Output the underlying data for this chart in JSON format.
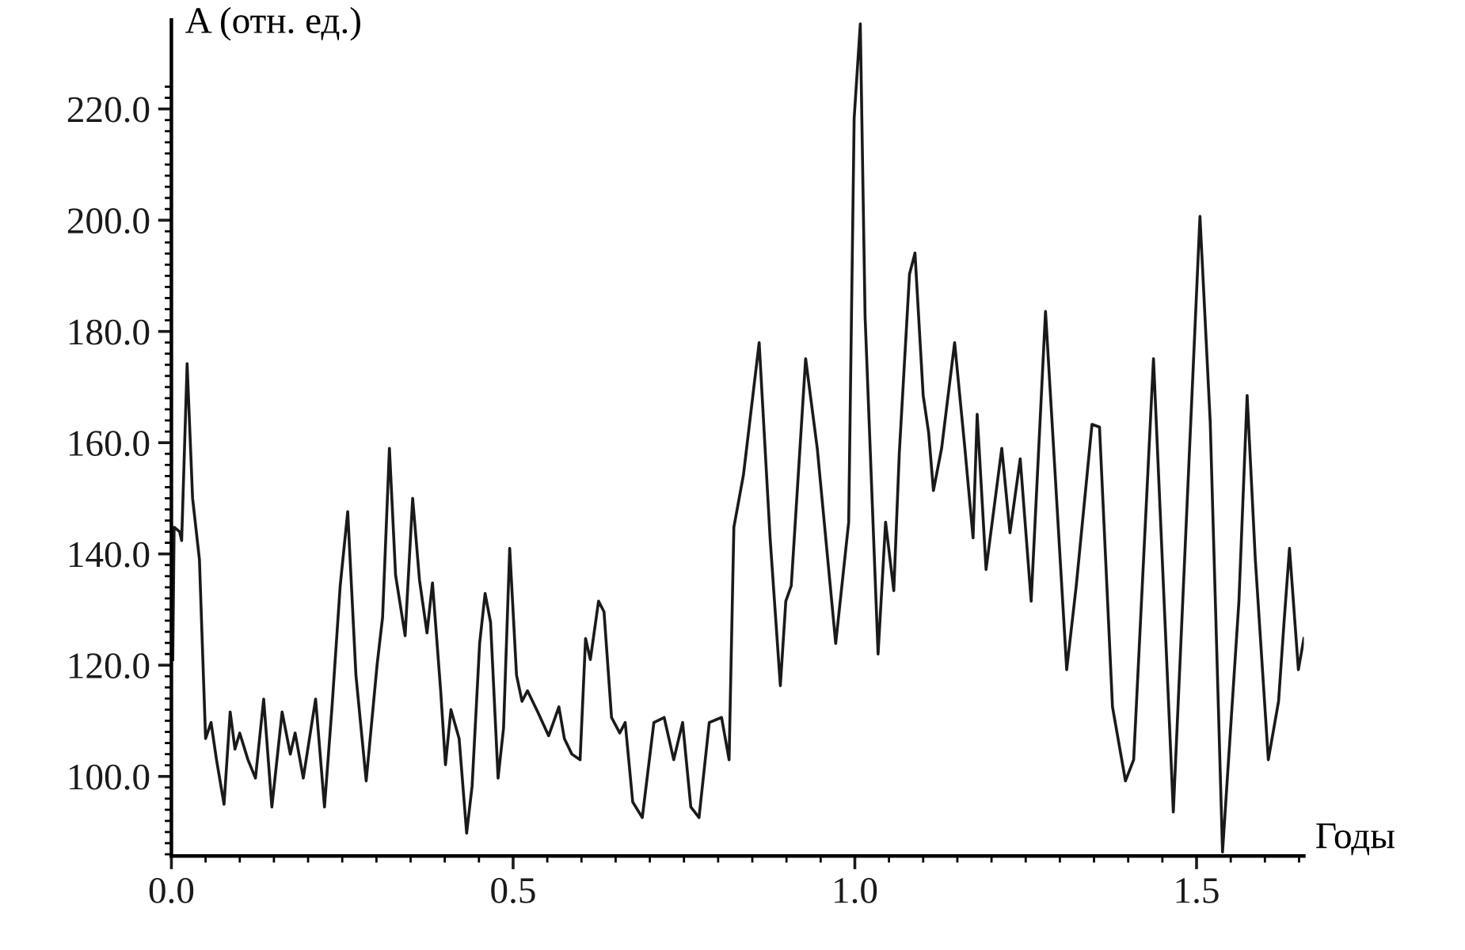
{
  "chart_data": {
    "type": "line",
    "ylabel": "A (отн. ед.)",
    "xlabel": "Годы",
    "grid": false,
    "line_style": "solid",
    "marker": "none",
    "xlim": [
      0,
      1.657
    ],
    "ylim": [
      85.7,
      236
    ],
    "xticks": [
      {
        "value": 0,
        "label": "0.0"
      },
      {
        "value": 0.5,
        "label": "0.5"
      },
      {
        "value": 1.0,
        "label": "1.0"
      },
      {
        "value": 1.5,
        "label": "1.5"
      },
      {
        "value": 0.05,
        "label": null
      },
      {
        "value": 0.1,
        "label": null
      },
      {
        "value": 0.15,
        "label": null
      },
      {
        "value": 0.2,
        "label": null
      },
      {
        "value": 0.25,
        "label": null
      },
      {
        "value": 0.3,
        "label": null
      },
      {
        "value": 0.35,
        "label": null
      },
      {
        "value": 0.4,
        "label": null
      },
      {
        "value": 0.45,
        "label": null
      },
      {
        "value": 0.55,
        "label": null
      },
      {
        "value": 0.6,
        "label": null
      },
      {
        "value": 0.65,
        "label": null
      },
      {
        "value": 0.7,
        "label": null
      },
      {
        "value": 0.75,
        "label": null
      },
      {
        "value": 0.8,
        "label": null
      },
      {
        "value": 0.85,
        "label": null
      },
      {
        "value": 0.9,
        "label": null
      },
      {
        "value": 0.95,
        "label": null
      },
      {
        "value": 1.05,
        "label": null
      },
      {
        "value": 1.1,
        "label": null
      },
      {
        "value": 1.15,
        "label": null
      },
      {
        "value": 1.2,
        "label": null
      },
      {
        "value": 1.25,
        "label": null
      },
      {
        "value": 1.3,
        "label": null
      },
      {
        "value": 1.35,
        "label": null
      },
      {
        "value": 1.4,
        "label": null
      },
      {
        "value": 1.45,
        "label": null
      },
      {
        "value": 1.55,
        "label": null
      },
      {
        "value": 1.6,
        "label": null
      },
      {
        "value": 1.65,
        "label": null
      }
    ],
    "yticks": [
      {
        "value": 100,
        "label": "100.0"
      },
      {
        "value": 120,
        "label": "120.0"
      },
      {
        "value": 140,
        "label": "140.0"
      },
      {
        "value": 160,
        "label": "160.0"
      },
      {
        "value": 180,
        "label": "180.0"
      },
      {
        "value": 200,
        "label": "200.0"
      },
      {
        "value": 220,
        "label": "220.0"
      },
      {
        "value": 86,
        "label": null
      },
      {
        "value": 88,
        "label": null
      },
      {
        "value": 90,
        "label": null
      },
      {
        "value": 92,
        "label": null
      },
      {
        "value": 94,
        "label": null
      },
      {
        "value": 96,
        "label": null
      },
      {
        "value": 98,
        "label": null
      },
      {
        "value": 102,
        "label": null
      },
      {
        "value": 104,
        "label": null
      },
      {
        "value": 106,
        "label": null
      },
      {
        "value": 108,
        "label": null
      },
      {
        "value": 110,
        "label": null
      },
      {
        "value": 112,
        "label": null
      },
      {
        "value": 114,
        "label": null
      },
      {
        "value": 116,
        "label": null
      },
      {
        "value": 118,
        "label": null
      },
      {
        "value": 122,
        "label": null
      },
      {
        "value": 124,
        "label": null
      },
      {
        "value": 126,
        "label": null
      },
      {
        "value": 128,
        "label": null
      },
      {
        "value": 130,
        "label": null
      },
      {
        "value": 132,
        "label": null
      },
      {
        "value": 134,
        "label": null
      },
      {
        "value": 136,
        "label": null
      },
      {
        "value": 138,
        "label": null
      },
      {
        "value": 142,
        "label": null
      },
      {
        "value": 144,
        "label": null
      },
      {
        "value": 146,
        "label": null
      },
      {
        "value": 148,
        "label": null
      },
      {
        "value": 150,
        "label": null
      },
      {
        "value": 152,
        "label": null
      },
      {
        "value": 154,
        "label": null
      },
      {
        "value": 156,
        "label": null
      },
      {
        "value": 158,
        "label": null
      },
      {
        "value": 162,
        "label": null
      },
      {
        "value": 164,
        "label": null
      },
      {
        "value": 166,
        "label": null
      },
      {
        "value": 168,
        "label": null
      },
      {
        "value": 170,
        "label": null
      },
      {
        "value": 172,
        "label": null
      },
      {
        "value": 174,
        "label": null
      },
      {
        "value": 176,
        "label": null
      },
      {
        "value": 178,
        "label": null
      },
      {
        "value": 182,
        "label": null
      },
      {
        "value": 184,
        "label": null
      },
      {
        "value": 186,
        "label": null
      },
      {
        "value": 188,
        "label": null
      },
      {
        "value": 190,
        "label": null
      },
      {
        "value": 192,
        "label": null
      },
      {
        "value": 194,
        "label": null
      },
      {
        "value": 196,
        "label": null
      },
      {
        "value": 198,
        "label": null
      },
      {
        "value": 202,
        "label": null
      },
      {
        "value": 204,
        "label": null
      },
      {
        "value": 206,
        "label": null
      },
      {
        "value": 208,
        "label": null
      },
      {
        "value": 210,
        "label": null
      },
      {
        "value": 212,
        "label": null
      },
      {
        "value": 214,
        "label": null
      },
      {
        "value": 216,
        "label": null
      },
      {
        "value": 218,
        "label": null
      },
      {
        "value": 222,
        "label": null
      },
      {
        "value": 224,
        "label": null
      }
    ],
    "series": [
      {
        "color": "#1a1a1a",
        "x": [
          0.002,
          0.004,
          0.012,
          0.015,
          0.023,
          0.031,
          0.041,
          0.046,
          0.05,
          0.058,
          0.066,
          0.077,
          0.086,
          0.093,
          0.1,
          0.112,
          0.123,
          0.135,
          0.147,
          0.162,
          0.174,
          0.181,
          0.193,
          0.211,
          0.224,
          0.235,
          0.247,
          0.258,
          0.27,
          0.285,
          0.301,
          0.309,
          0.319,
          0.328,
          0.342,
          0.353,
          0.363,
          0.374,
          0.382,
          0.394,
          0.401,
          0.409,
          0.421,
          0.432,
          0.44,
          0.451,
          0.459,
          0.467,
          0.478,
          0.486,
          0.495,
          0.505,
          0.513,
          0.521,
          0.536,
          0.552,
          0.567,
          0.575,
          0.586,
          0.598,
          0.606,
          0.613,
          0.625,
          0.633,
          0.644,
          0.656,
          0.664,
          0.675,
          0.689,
          0.706,
          0.721,
          0.735,
          0.748,
          0.76,
          0.772,
          0.787,
          0.805,
          0.816,
          0.823,
          0.837,
          0.86,
          0.876,
          0.891,
          0.899,
          0.907,
          0.928,
          0.945,
          0.972,
          0.991,
          0.999,
          1.008,
          1.015,
          1.034,
          1.045,
          1.057,
          1.065,
          1.08,
          1.088,
          1.1,
          1.108,
          1.115,
          1.127,
          1.146,
          1.161,
          1.173,
          1.179,
          1.192,
          1.215,
          1.227,
          1.242,
          1.258,
          1.279,
          1.31,
          1.324,
          1.347,
          1.358,
          1.377,
          1.396,
          1.408,
          1.437,
          1.466,
          1.505,
          1.52,
          1.538,
          1.562,
          1.574,
          1.586,
          1.605,
          1.62,
          1.628,
          1.636,
          1.649,
          1.657
        ],
        "values": [
          121,
          144.8,
          144,
          142.4,
          174.2,
          150,
          139,
          121,
          106.8,
          109.7,
          103,
          95,
          111.6,
          104.9,
          107.8,
          103,
          99.7,
          113.9,
          94.5,
          111.6,
          104,
          107.8,
          99.7,
          113.9,
          94.5,
          112.5,
          134.3,
          147.6,
          118.2,
          99.2,
          120.1,
          128.6,
          159,
          136.2,
          125.3,
          150,
          135.3,
          125.8,
          134.8,
          115.4,
          102.1,
          112,
          106.8,
          89.8,
          98.3,
          123.9,
          132.9,
          127.7,
          99.7,
          108.7,
          141,
          118.2,
          113.5,
          115.4,
          111.6,
          107.3,
          112.5,
          106.8,
          104,
          103,
          124.8,
          121,
          131.5,
          129.6,
          110.6,
          107.8,
          109.7,
          95.4,
          92.6,
          109.7,
          110.6,
          103,
          109.7,
          94.5,
          92.6,
          109.7,
          110.6,
          103,
          144.8,
          154.2,
          178,
          142.9,
          116.3,
          131.5,
          134.3,
          175.1,
          159,
          123.9,
          145.7,
          218.3,
          235.3,
          182.7,
          122,
          145.7,
          133.4,
          158,
          190.3,
          194.1,
          168.5,
          161.8,
          151.4,
          159,
          178,
          159,
          142.9,
          165.1,
          137.2,
          159,
          143.8,
          157.1,
          131.5,
          183.6,
          119.2,
          134.3,
          163.3,
          162.8,
          112.5,
          99.2,
          103,
          175.1,
          93.6,
          200.7,
          163.7,
          86.4,
          131.5,
          168.5,
          139,
          103,
          113.5,
          127.7,
          141,
          119.2,
          124.8
        ]
      }
    ]
  }
}
